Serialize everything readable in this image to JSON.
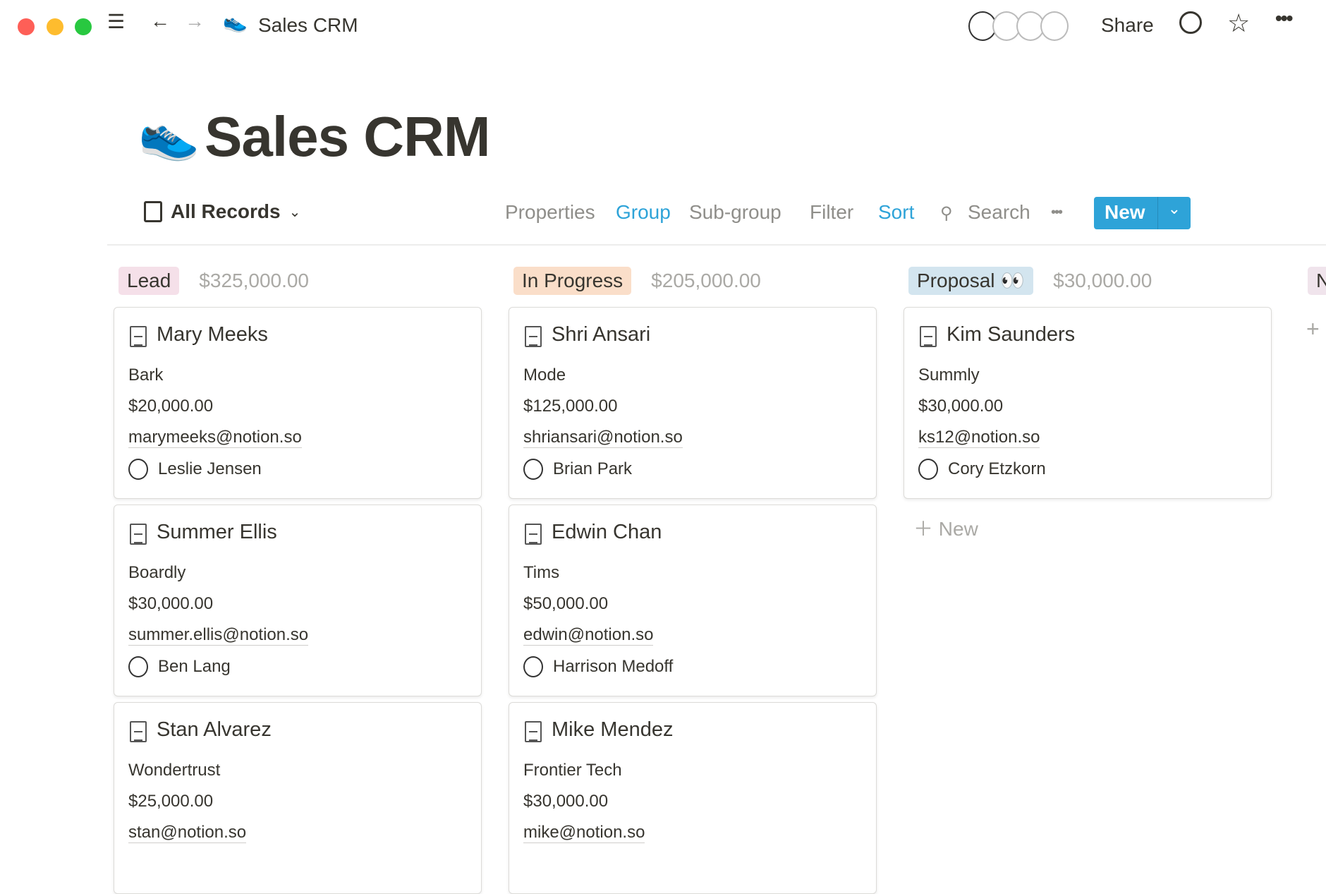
{
  "topbar": {
    "title": "Sales CRM",
    "share": "Share"
  },
  "page": {
    "title": "Sales CRM"
  },
  "toolbar": {
    "view": "All Records",
    "properties": "Properties",
    "group": "Group",
    "subgroup": "Sub-group",
    "filter": "Filter",
    "sort": "Sort",
    "search": "Search",
    "new": "New"
  },
  "colors": {
    "accent": "#2ea3d8",
    "lead": "#f5e0e9",
    "in_progress": "#fadec9",
    "proposal": "#d3e5ef"
  },
  "columns": [
    {
      "label": "Lead",
      "sum": "$325,000.00",
      "cards": [
        {
          "name": "Mary Meeks",
          "company": "Bark",
          "amount": "$20,000.00",
          "email": "marymeeks@notion.so",
          "owner": "Leslie Jensen"
        },
        {
          "name": "Summer Ellis",
          "company": "Boardly",
          "amount": "$30,000.00",
          "email": "summer.ellis@notion.so",
          "owner": "Ben Lang"
        },
        {
          "name": "Stan Alvarez",
          "company": "Wondertrust",
          "amount": "$25,000.00",
          "email": "stan@notion.so"
        }
      ]
    },
    {
      "label": "In Progress",
      "sum": "$205,000.00",
      "cards": [
        {
          "name": "Shri Ansari",
          "company": "Mode",
          "amount": "$125,000.00",
          "email": "shriansari@notion.so",
          "owner": "Brian Park"
        },
        {
          "name": "Edwin Chan",
          "company": "Tims",
          "amount": "$50,000.00",
          "email": "edwin@notion.so",
          "owner": "Harrison Medoff"
        },
        {
          "name": "Mike Mendez",
          "company": "Frontier Tech",
          "amount": "$30,000.00",
          "email": "mike@notion.so"
        }
      ]
    },
    {
      "label": "Proposal 👀",
      "sum": "$30,000.00",
      "cards": [
        {
          "name": "Kim Saunders",
          "company": "Summly",
          "amount": "$30,000.00",
          "email": "ks12@notion.so",
          "owner": "Cory Etzkorn"
        }
      ],
      "add": "New"
    },
    {
      "label": "N"
    }
  ]
}
